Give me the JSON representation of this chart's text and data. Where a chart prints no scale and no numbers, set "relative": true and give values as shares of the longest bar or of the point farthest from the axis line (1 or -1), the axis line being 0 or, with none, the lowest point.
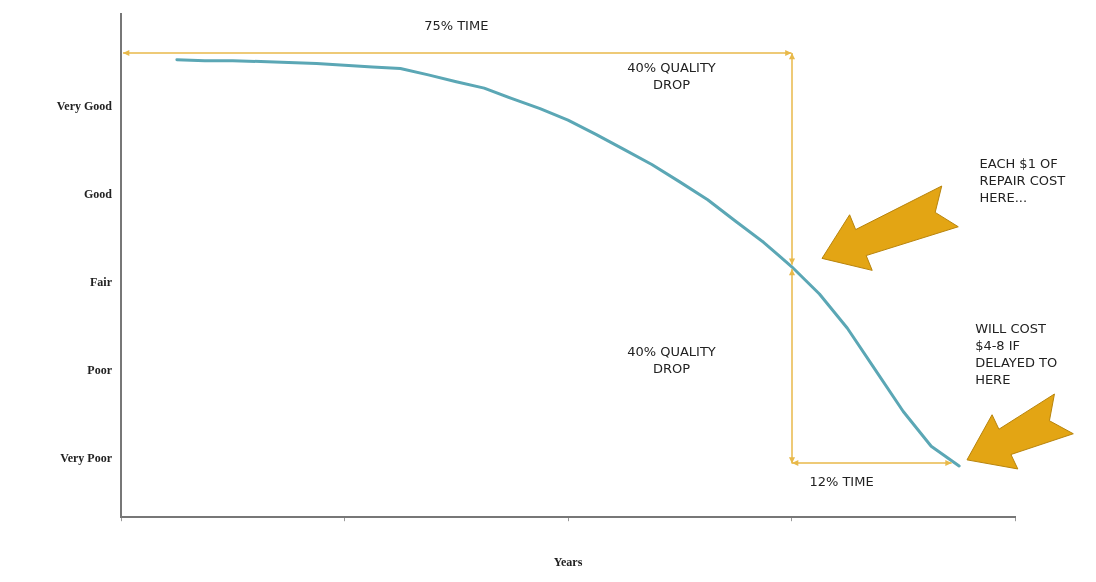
{
  "chart_data": {
    "type": "line",
    "xlabel": "Years",
    "relative": true,
    "categories": [
      null,
      null,
      null,
      null,
      null,
      null,
      null,
      null,
      null,
      null,
      null,
      null,
      null,
      null,
      null,
      null,
      null,
      null,
      null,
      null,
      null,
      null,
      null,
      null,
      null,
      null,
      null,
      null,
      null,
      null,
      null,
      null,
      null
    ],
    "grid": false,
    "legend": false,
    "series": [
      {
        "color": "#5ba7b5",
        "values": [
          null,
          null,
          1,
          0.998,
          0.998,
          0.996,
          0.994,
          0.992,
          0.988,
          0.984,
          0.981,
          0.967,
          0.952,
          0.938,
          0.915,
          0.893,
          0.868,
          0.837,
          0.804,
          0.771,
          0.733,
          0.694,
          0.647,
          0.601,
          0.548,
          0.488,
          0.413,
          0.322,
          0.231,
          0.155,
          0.112,
          null,
          null
        ]
      }
    ],
    "annotations": [
      "Very Good",
      "Good",
      "Fair",
      "Poor",
      "Very Poor",
      "75% TIME",
      "40% QUALITY\nDROP",
      "40% QUALITY\nDROP",
      "12% TIME",
      "EACH $1 OF\nREPAIR COST\nHERE...",
      "WILL COST\n$4-8 IF\nDELAYED TO\nHERE"
    ]
  }
}
